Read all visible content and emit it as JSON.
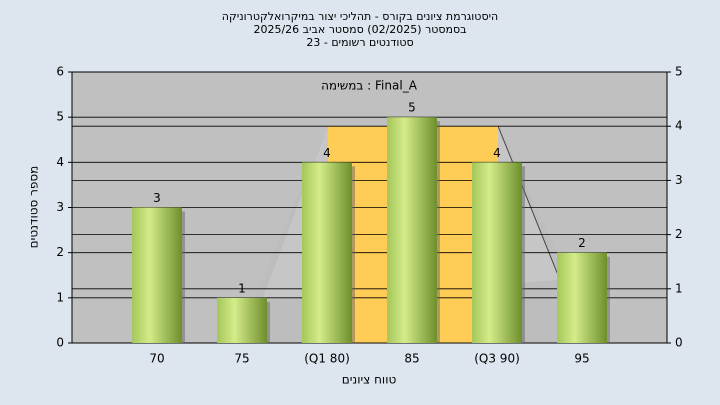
{
  "chart_data": {
    "type": "bar",
    "title": [
      "היסטוגרמת ציונים בקורס - תהליכי יצור במיקרואלקטרוניקה",
      "בסמסטר  (02/2025)  סמסטר אביב 2025/26",
      "סטודנטים רשומים - 23"
    ],
    "annotation": "במשימה : Final_A",
    "x_label": "טווח ציונים",
    "y_label": "מספר סטודנטים",
    "categories": [
      "70",
      "75",
      "(Q1 80)",
      "85",
      "(Q3 90)",
      "95"
    ],
    "values": [
      3,
      1,
      4,
      5,
      4,
      2
    ],
    "ylim": [
      0,
      6
    ],
    "yticks": [
      0,
      1,
      2,
      3,
      4,
      5,
      6
    ],
    "y2lim": [
      0,
      5
    ],
    "y2ticks": [
      0,
      1,
      2,
      3,
      4,
      5
    ],
    "grid": true
  }
}
